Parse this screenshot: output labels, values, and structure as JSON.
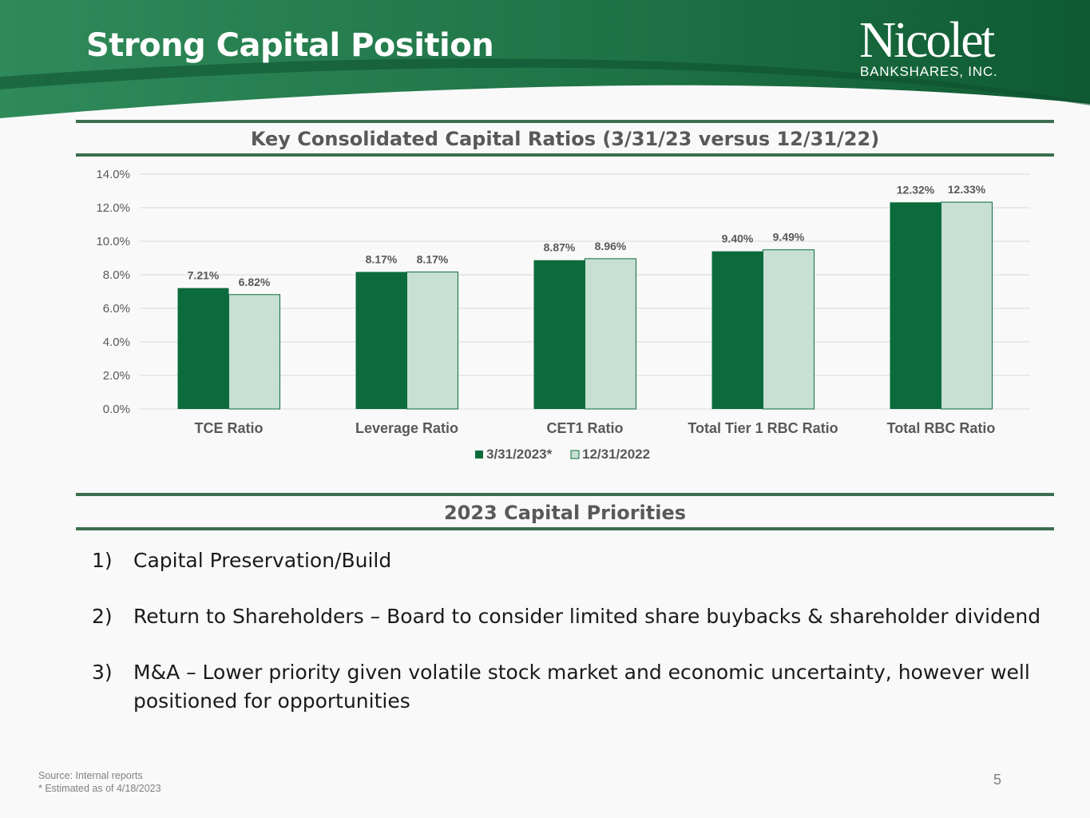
{
  "slide": {
    "title": "Strong Capital Position",
    "page_number": "5"
  },
  "logo": {
    "name": "Nicolet",
    "subtitle": "BANKSHARES, INC."
  },
  "colors": {
    "header_dark": "#0f5a33",
    "header_light": "#2f8a5a",
    "series_dark": "#0c6b3c",
    "series_light": "#c8dfd3",
    "rule": "#3c6e4f"
  },
  "chart_section": {
    "heading": "Key Consolidated Capital Ratios (3/31/23 versus 12/31/22)"
  },
  "chart_data": {
    "type": "bar",
    "title": "Key Consolidated Capital Ratios (3/31/23 versus 12/31/22)",
    "categories": [
      "TCE Ratio",
      "Leverage Ratio",
      "CET1 Ratio",
      "Total Tier 1 RBC Ratio",
      "Total RBC Ratio"
    ],
    "series": [
      {
        "name": "3/31/2023*",
        "values": [
          7.21,
          8.17,
          8.87,
          9.4,
          12.32
        ],
        "labels": [
          "7.21%",
          "8.17%",
          "8.87%",
          "9.40%",
          "12.32%"
        ],
        "color": "#0c6b3c"
      },
      {
        "name": "12/31/2022",
        "values": [
          6.82,
          8.17,
          8.96,
          9.49,
          12.33
        ],
        "labels": [
          "6.82%",
          "8.17%",
          "8.96%",
          "9.49%",
          "12.33%"
        ],
        "color": "#c8dfd3"
      }
    ],
    "ylim": [
      0,
      14
    ],
    "yticks": [
      "0.0%",
      "2.0%",
      "4.0%",
      "6.0%",
      "8.0%",
      "10.0%",
      "12.0%",
      "14.0%"
    ],
    "ytick_values": [
      0,
      2,
      4,
      6,
      8,
      10,
      12,
      14
    ],
    "grid": true,
    "legend_position": "bottom",
    "xlabel": "",
    "ylabel": ""
  },
  "priorities_section": {
    "heading": "2023 Capital Priorities",
    "items": [
      {
        "num": "1)",
        "text": "Capital Preservation/Build"
      },
      {
        "num": "2)",
        "text": "Return to Shareholders – Board to consider limited share buybacks & shareholder dividend"
      },
      {
        "num": "3)",
        "text": "M&A – Lower priority given volatile stock market and economic uncertainty, however well positioned for opportunities"
      }
    ]
  },
  "footer": {
    "source": "Source: Internal reports",
    "note": "* Estimated as of 4/18/2023"
  }
}
